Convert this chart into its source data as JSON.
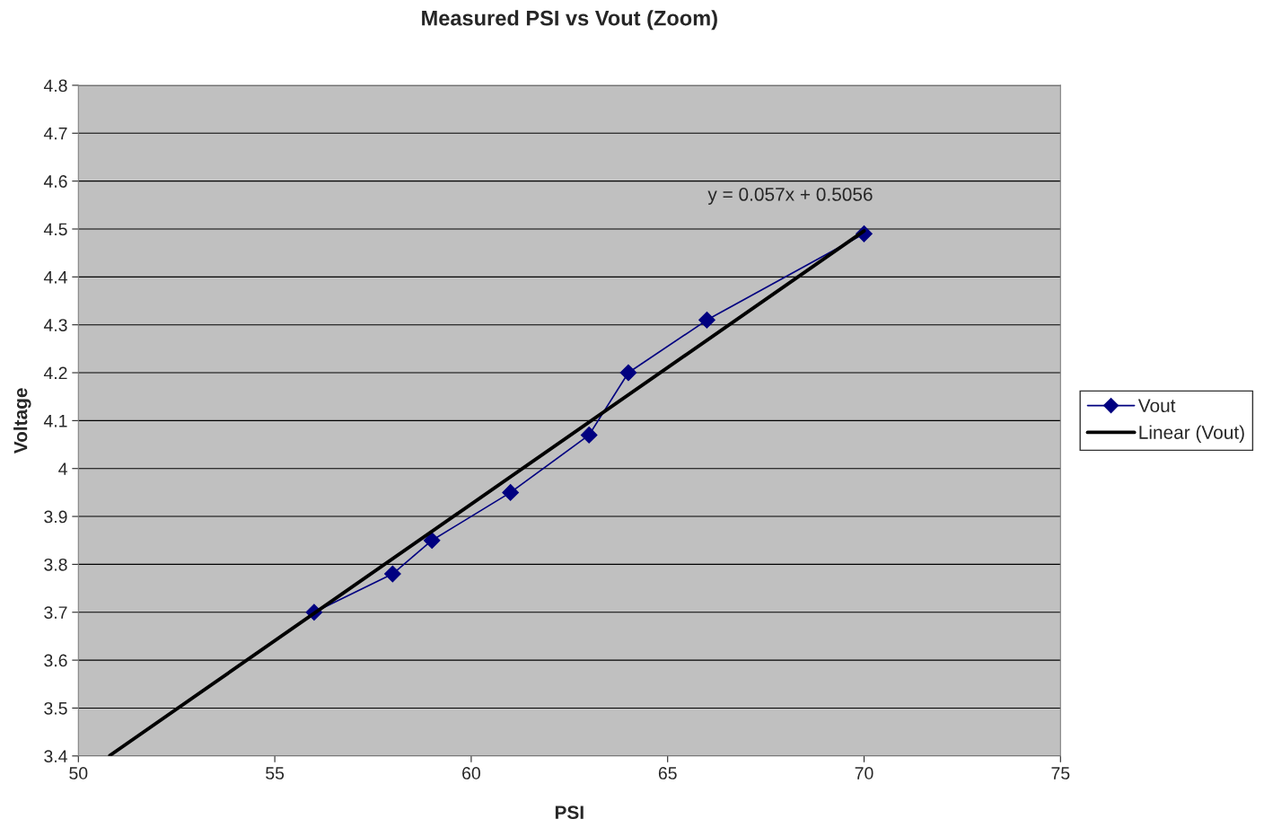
{
  "chart_data": {
    "type": "line",
    "title": "Measured PSI vs Vout (Zoom)",
    "xlabel": "PSI",
    "ylabel": "Voltage",
    "series": [
      {
        "name": "Vout",
        "color": "#000080",
        "marker": "diamond",
        "x": [
          56,
          58,
          59,
          61,
          63,
          64,
          66,
          70
        ],
        "values": [
          3.7,
          3.78,
          3.85,
          3.95,
          4.07,
          4.2,
          4.31,
          4.49
        ]
      },
      {
        "name": "Linear (Vout)",
        "color": "#000000",
        "marker": "none",
        "x": [
          50.8,
          70
        ],
        "values": [
          3.401,
          4.496
        ]
      }
    ],
    "annotations": [
      "y = 0.057x + 0.5056"
    ],
    "xlim": [
      50,
      75
    ],
    "xticks": [
      50,
      55,
      60,
      65,
      70,
      75
    ],
    "ylim": [
      3.4,
      4.8
    ],
    "yticks": [
      3.4,
      3.5,
      3.6,
      3.7,
      3.8,
      3.9,
      4,
      4.1,
      4.2,
      4.3,
      4.4,
      4.5,
      4.6,
      4.7,
      4.8
    ],
    "grid": "y",
    "legend": "right"
  }
}
